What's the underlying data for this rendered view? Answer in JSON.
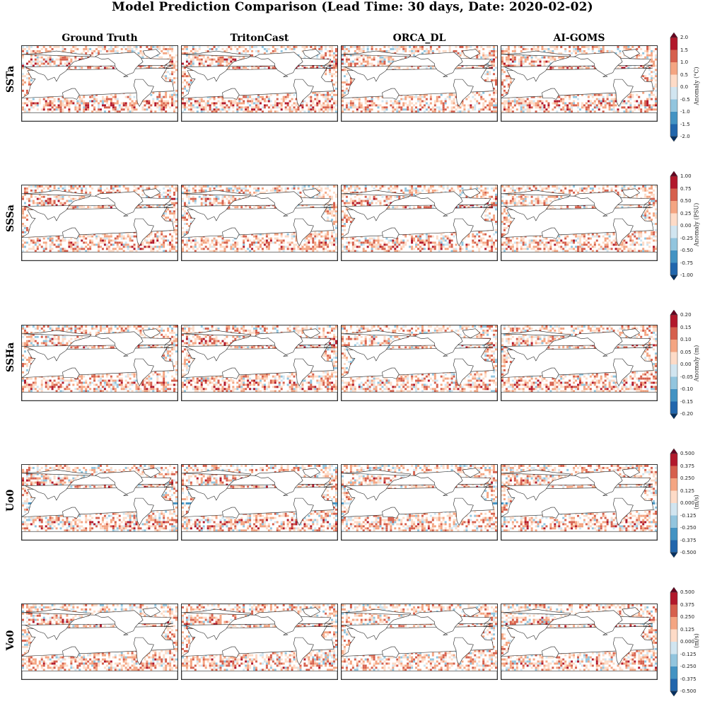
{
  "title": "Model Prediction Comparison (Lead Time: 30 days, Date: 2020-02-02)",
  "columns": [
    "Ground Truth",
    "TritonCast",
    "ORCA_DL",
    "AI-GOMS"
  ],
  "rows": [
    {
      "name": "SSTa",
      "cbar_label": "Anomaly (°C)",
      "ticks": [
        "2.0",
        "1.5",
        "1.0",
        "0.5",
        "0.0",
        "-0.5",
        "-1.0",
        "-1.5",
        "-2.0"
      ]
    },
    {
      "name": "SSSa",
      "cbar_label": "Anomaly (PSU)",
      "ticks": [
        "1.00",
        "0.75",
        "0.50",
        "0.25",
        "0.00",
        "-0.25",
        "-0.50",
        "-0.75",
        "-1.00"
      ]
    },
    {
      "name": "SSHa",
      "cbar_label": "Anomaly (m)",
      "ticks": [
        "0.20",
        "0.15",
        "0.10",
        "0.05",
        "0.00",
        "-0.05",
        "-0.10",
        "-0.15",
        "-0.20"
      ]
    },
    {
      "name": "Uo0",
      "cbar_label": "(m/s)",
      "ticks": [
        "0.500",
        "0.375",
        "0.250",
        "0.125",
        "0.000",
        "-0.125",
        "-0.250",
        "-0.375",
        "-0.500"
      ]
    },
    {
      "name": "Vo0",
      "cbar_label": "(m/s)",
      "ticks": [
        "0.500",
        "0.375",
        "0.250",
        "0.125",
        "0.000",
        "-0.125",
        "-0.250",
        "-0.375",
        "-0.500"
      ]
    }
  ],
  "chart_data": {
    "type": "heatmap",
    "title": "Model Prediction Comparison (Lead Time: 30 days, Date: 2020-02-02)",
    "colormap": "RdBu_r",
    "cbar_colors": [
      "#b2182b",
      "#d6604d",
      "#f4a582",
      "#fddbc7",
      "#f7f7f7",
      "#d1e5f0",
      "#92c5de",
      "#4393c3",
      "#2166ac"
    ],
    "panels_x": [
      "Ground Truth",
      "TritonCast",
      "ORCA_DL",
      "AI-GOMS"
    ],
    "panels_y": [
      "SSTa",
      "SSSa",
      "SSHa",
      "Uo0",
      "Vo0"
    ],
    "ranges": {
      "SSTa": [
        -2.0,
        2.0
      ],
      "SSSa": [
        -1.0,
        1.0
      ],
      "SSHa": [
        -0.2,
        0.2
      ],
      "Uo0": [
        -0.5,
        0.5
      ],
      "Vo0": [
        -0.5,
        0.5
      ]
    }
  }
}
